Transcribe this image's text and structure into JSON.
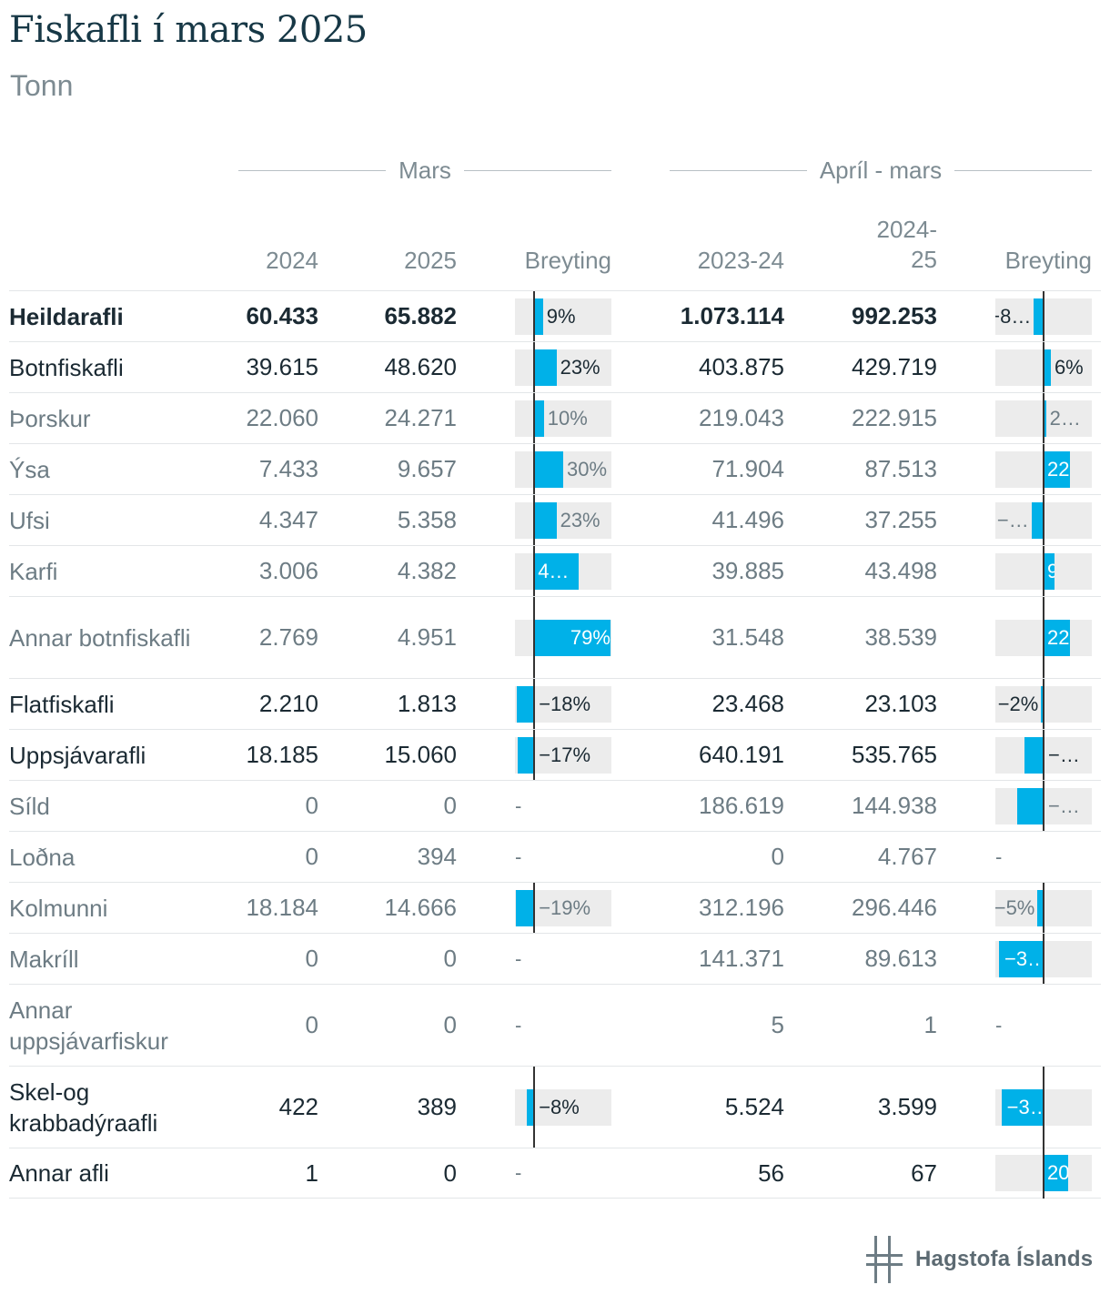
{
  "title": "Fiskafli í mars 2025",
  "subtitle": "Tonn",
  "groups": {
    "month": "Mars",
    "period": "Apríl - mars"
  },
  "columns": {
    "y2024": "2024",
    "y2025": "2025",
    "change1": "Breyting",
    "p2023": "2023-24",
    "p2024_l1": "2024-",
    "p2024_l2": "25",
    "change2": "Breyting"
  },
  "logo_text": "Hagstofa Íslands",
  "colors": {
    "bar": "#00b1e8",
    "bar_bg": "#ececec",
    "title": "#173846"
  },
  "chart_data": {
    "type": "table",
    "change_scale": {
      "month_min": -20,
      "month_max": 80,
      "period_min": -40,
      "period_max": 40
    },
    "rows": [
      {
        "name": "Heildarafli",
        "style": "bold",
        "m2024": "60.433",
        "m2025": "65.882",
        "mchg": 9,
        "mchg_label": "9%",
        "p1": "1.073.114",
        "p2": "992.253",
        "pchg": -8,
        "pchg_label": "−8…"
      },
      {
        "name": "Botnfiskafli",
        "style": "main",
        "m2024": "39.615",
        "m2025": "48.620",
        "mchg": 23,
        "mchg_label": "23%",
        "p1": "403.875",
        "p2": "429.719",
        "pchg": 6,
        "pchg_label": "6%"
      },
      {
        "name": "Þorskur",
        "style": "sub",
        "m2024": "22.060",
        "m2025": "24.271",
        "mchg": 10,
        "mchg_label": "10%",
        "p1": "219.043",
        "p2": "222.915",
        "pchg": 2,
        "pchg_label": "2…"
      },
      {
        "name": "Ýsa",
        "style": "sub",
        "m2024": "7.433",
        "m2025": "9.657",
        "mchg": 30,
        "mchg_label": "30%",
        "p1": "71.904",
        "p2": "87.513",
        "pchg": 22,
        "pchg_label": "22%"
      },
      {
        "name": "Ufsi",
        "style": "sub",
        "m2024": "4.347",
        "m2025": "5.358",
        "mchg": 23,
        "mchg_label": "23%",
        "p1": "41.496",
        "p2": "37.255",
        "pchg": -10,
        "pchg_label": "−…"
      },
      {
        "name": "Karfi",
        "style": "sub",
        "m2024": "3.006",
        "m2025": "4.382",
        "mchg": 46,
        "mchg_label": "4…",
        "p1": "39.885",
        "p2": "43.498",
        "pchg": 9,
        "pchg_label": "9%"
      },
      {
        "name": "Annar botnfiskafli",
        "style": "sub",
        "m2024": "2.769",
        "m2025": "4.951",
        "mchg": 79,
        "mchg_label": "79%",
        "p1": "31.548",
        "p2": "38.539",
        "pchg": 22,
        "pchg_label": "22%"
      },
      {
        "name": "Flatfiskafli",
        "style": "main",
        "m2024": "2.210",
        "m2025": "1.813",
        "mchg": -18,
        "mchg_label": "−18%",
        "p1": "23.468",
        "p2": "23.103",
        "pchg": -2,
        "pchg_label": "−2%"
      },
      {
        "name": "Uppsjávarafli",
        "style": "main",
        "m2024": "18.185",
        "m2025": "15.060",
        "mchg": -17,
        "mchg_label": "−17%",
        "p1": "640.191",
        "p2": "535.765",
        "pchg": -16,
        "pchg_label": "−…"
      },
      {
        "name": "Síld",
        "style": "sub",
        "m2024": "0",
        "m2025": "0",
        "mchg": null,
        "mchg_label": "-",
        "p1": "186.619",
        "p2": "144.938",
        "pchg": -22,
        "pchg_label": "−…"
      },
      {
        "name": "Loðna",
        "style": "sub",
        "m2024": "0",
        "m2025": "394",
        "mchg": null,
        "mchg_label": "-",
        "p1": "0",
        "p2": "4.767",
        "pchg": null,
        "pchg_label": "-"
      },
      {
        "name": "Kolmunni",
        "style": "sub",
        "m2024": "18.184",
        "m2025": "14.666",
        "mchg": -19,
        "mchg_label": "−19%",
        "p1": "312.196",
        "p2": "296.446",
        "pchg": -5,
        "pchg_label": "−5%"
      },
      {
        "name": "Makríll",
        "style": "sub",
        "m2024": "0",
        "m2025": "0",
        "mchg": null,
        "mchg_label": "-",
        "p1": "141.371",
        "p2": "89.613",
        "pchg": -37,
        "pchg_label": "−3…"
      },
      {
        "name": "Annar uppsjávarfiskur",
        "style": "sub",
        "m2024": "0",
        "m2025": "0",
        "mchg": null,
        "mchg_label": "-",
        "p1": "5",
        "p2": "1",
        "pchg": null,
        "pchg_label": "-"
      },
      {
        "name": "Skel-og krabbadýraafli",
        "style": "main",
        "m2024": "422",
        "m2025": "389",
        "mchg": -8,
        "mchg_label": "−8%",
        "p1": "5.524",
        "p2": "3.599",
        "pchg": -35,
        "pchg_label": "−3…"
      },
      {
        "name": "Annar afli",
        "style": "main",
        "m2024": "1",
        "m2025": "0",
        "mchg": null,
        "mchg_label": "-",
        "p1": "56",
        "p2": "67",
        "pchg": 20,
        "pchg_label": "20%"
      }
    ]
  }
}
